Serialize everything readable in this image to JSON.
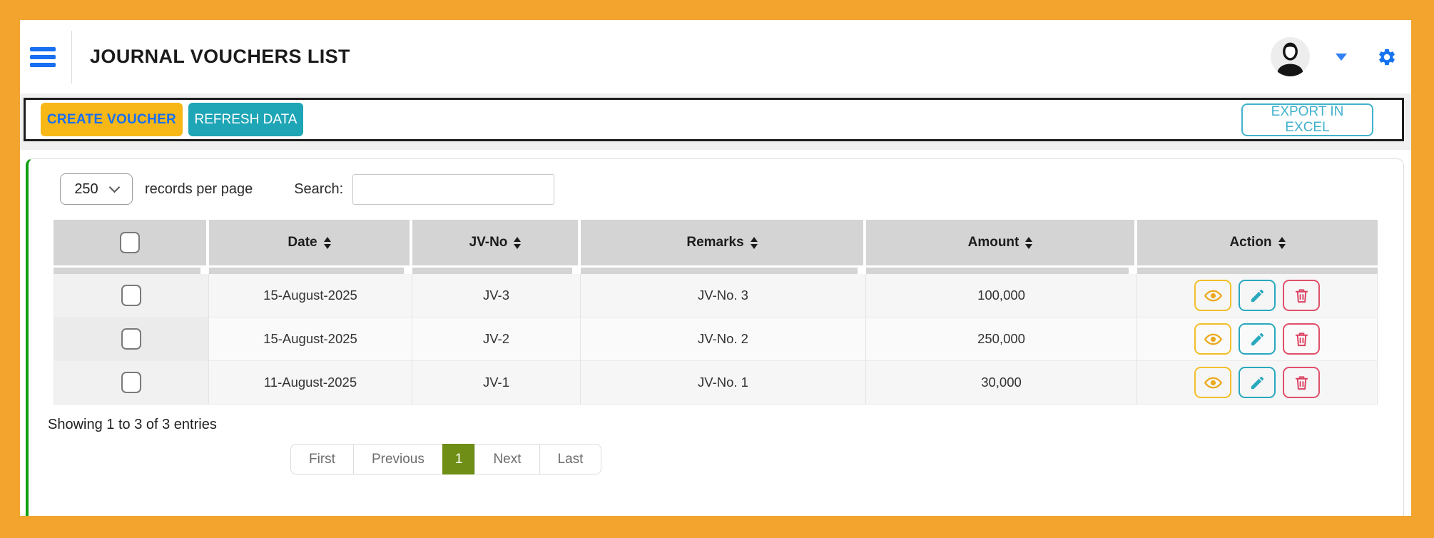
{
  "header": {
    "title": "JOURNAL VOUCHERS LIST",
    "icons": [
      "hamburger-icon",
      "avatar",
      "caret-down-icon",
      "gear-icon"
    ]
  },
  "toolbar": {
    "create_label": "CREATE VOUCHER",
    "refresh_label": "REFRESH DATA",
    "export_label": "EXPORT IN EXCEL"
  },
  "table_controls": {
    "records_selected": "250",
    "records_label": "records per page",
    "search_label": "Search:",
    "search_value": ""
  },
  "table": {
    "columns": [
      "Date",
      "JV-No",
      "Remarks",
      "Amount",
      "Action"
    ],
    "action_icons": [
      "eye-icon",
      "pencil-icon",
      "trash-icon"
    ],
    "rows": [
      {
        "date": "15-August-2025",
        "jv_no": "JV-3",
        "remarks": "JV-No. 3",
        "amount": "100,000"
      },
      {
        "date": "15-August-2025",
        "jv_no": "JV-2",
        "remarks": "JV-No. 2",
        "amount": "250,000"
      },
      {
        "date": "11-August-2025",
        "jv_no": "JV-1",
        "remarks": "JV-No. 1",
        "amount": "30,000"
      }
    ]
  },
  "footer": {
    "showing": "Showing 1 to 3 of 3 entries",
    "pagination": [
      "First",
      "Previous",
      "1",
      "Next",
      "Last"
    ],
    "active_page": "1"
  },
  "colors": {
    "accent-orange": "#F2A42F",
    "accent-blue": "#186FF2",
    "btn-amber": "#F7B717",
    "btn-teal": "#1EA5B6",
    "btn-teal-light": "#41B2CC",
    "card-green": "#0FA00F",
    "page-active-green": "#6E8E15",
    "table-header-gray": "#D4D4D4",
    "icon-eye": "#ECA81C",
    "icon-pencil": "#2AA8BE",
    "icon-trash": "#DC4161"
  }
}
